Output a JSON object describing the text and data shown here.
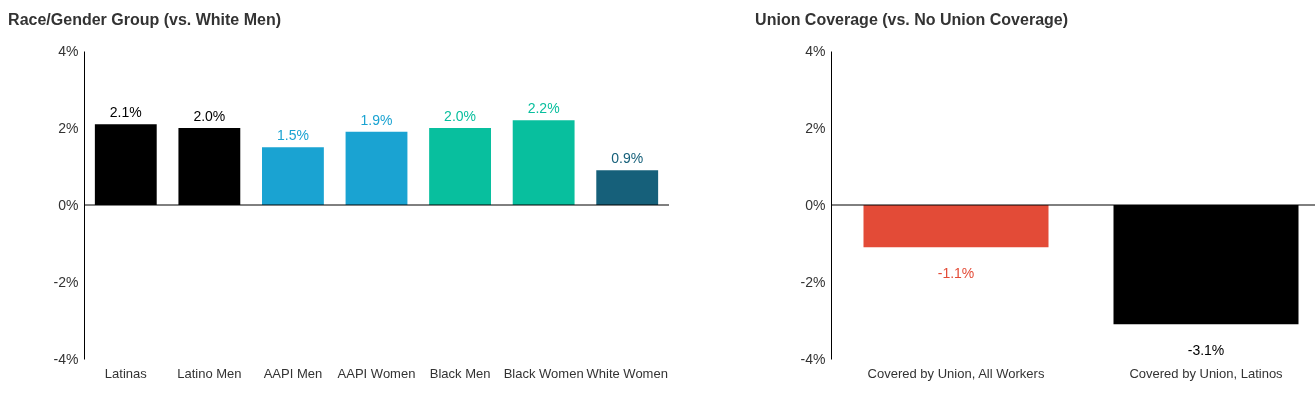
{
  "chart_data": [
    {
      "type": "bar",
      "title": "Race/Gender Group (vs. White Men)",
      "categories": [
        "Latinas",
        "Latino Men",
        "AAPI Men",
        "AAPI Women",
        "Black Men",
        "Black Women",
        "White Women"
      ],
      "values": [
        2.1,
        2.0,
        1.5,
        1.9,
        2.0,
        2.2,
        0.9
      ],
      "colors": [
        "#000000",
        "#000000",
        "#1aa3d2",
        "#1aa3d2",
        "#08bf9e",
        "#08bf9e",
        "#16607a"
      ],
      "value_labels": [
        "2.1%",
        "2.0%",
        "1.5%",
        "1.9%",
        "2.0%",
        "2.2%",
        "0.9%"
      ],
      "ylim": [
        -4,
        4
      ],
      "yticks": [
        {
          "value": -4,
          "label": "-4%"
        },
        {
          "value": -2,
          "label": "-2%"
        },
        {
          "value": 0,
          "label": "0%"
        },
        {
          "value": 2,
          "label": "2%"
        },
        {
          "value": 4,
          "label": "4%"
        }
      ]
    },
    {
      "type": "bar",
      "title": "Union Coverage (vs. No Union Coverage)",
      "categories": [
        "Covered by Union, All Workers",
        "Covered by Union, Latinos"
      ],
      "values": [
        -1.1,
        -3.1
      ],
      "colors": [
        "#e34b37",
        "#000000"
      ],
      "value_labels": [
        "-1.1%",
        "-3.1%"
      ],
      "ylim": [
        -4,
        4
      ],
      "yticks": [
        {
          "value": -4,
          "label": "-4%"
        },
        {
          "value": -2,
          "label": "-2%"
        },
        {
          "value": 0,
          "label": "0%"
        },
        {
          "value": 2,
          "label": "2%"
        },
        {
          "value": 4,
          "label": "4%"
        }
      ]
    }
  ]
}
